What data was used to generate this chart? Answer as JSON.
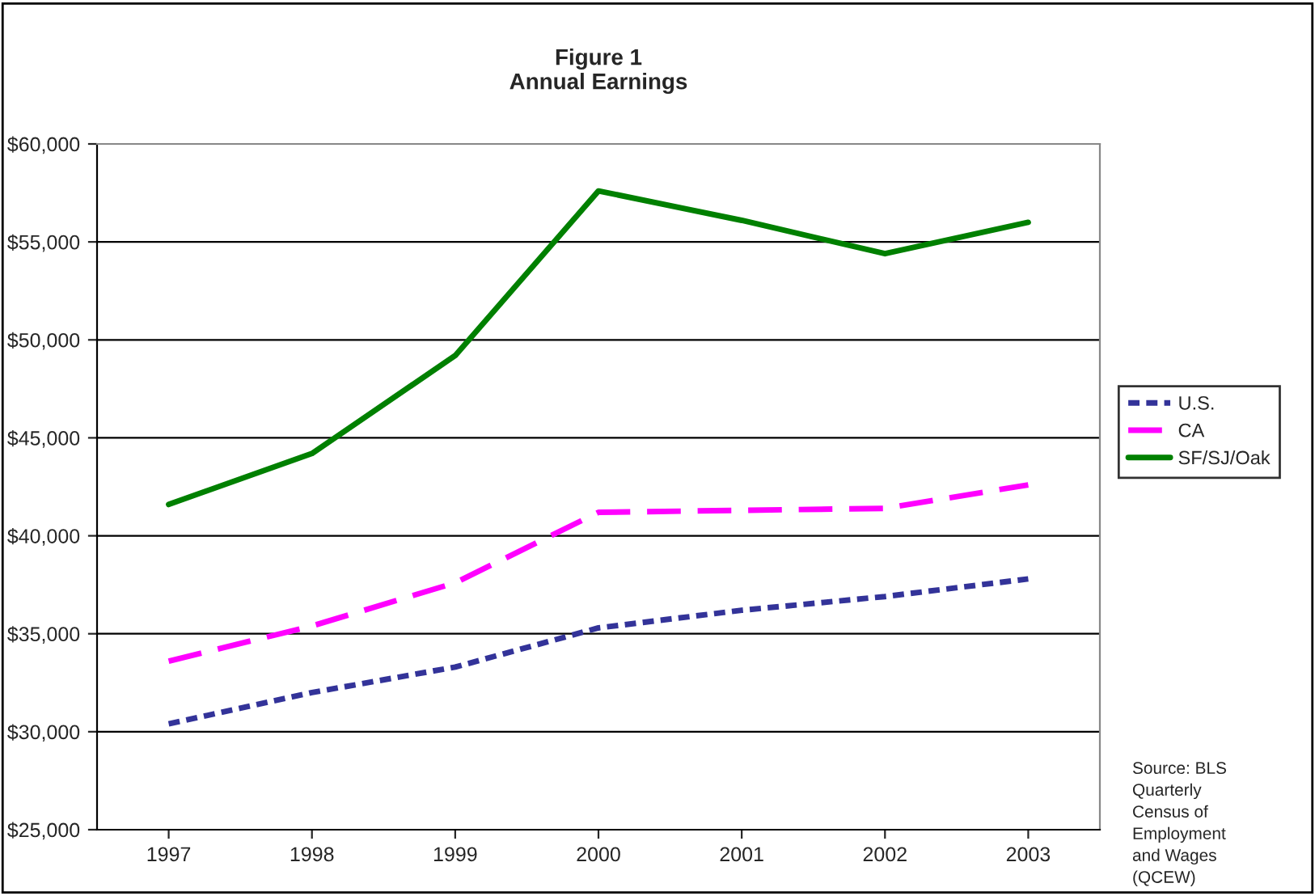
{
  "chart_data": {
    "type": "line",
    "title": "Figure 1\nAnnual Earnings",
    "categories": [
      "1997",
      "1998",
      "1999",
      "2000",
      "2001",
      "2002",
      "2003"
    ],
    "series": [
      {
        "name": "U.S.",
        "color": "#333399",
        "line_style": "dotted",
        "values": [
          30400,
          32000,
          33300,
          35300,
          36200,
          36900,
          37800
        ]
      },
      {
        "name": "CA",
        "color": "#ff00ff",
        "line_style": "dashed",
        "values": [
          33600,
          35400,
          37600,
          41200,
          41300,
          41400,
          42600
        ]
      },
      {
        "name": "SF/SJ/Oak",
        "color": "#008000",
        "line_style": "solid",
        "values": [
          41600,
          44200,
          49200,
          57600,
          56100,
          54400,
          56000
        ]
      }
    ],
    "ylim": [
      25000,
      60000
    ],
    "yticks": [
      {
        "value": 25000,
        "label": "$25,000"
      },
      {
        "value": 30000,
        "label": "$30,000"
      },
      {
        "value": 35000,
        "label": "$35,000"
      },
      {
        "value": 40000,
        "label": "$40,000"
      },
      {
        "value": 45000,
        "label": "$45,000"
      },
      {
        "value": 50000,
        "label": "$50,000"
      },
      {
        "value": 55000,
        "label": "$55,000"
      },
      {
        "value": 60000,
        "label": "$60,000"
      }
    ],
    "grid": "y",
    "legend": "right",
    "marker": "none",
    "annotations": [
      "Source: BLS\nQuarterly\nCensus of\nEmployment\nand Wages\n(QCEW)"
    ]
  }
}
